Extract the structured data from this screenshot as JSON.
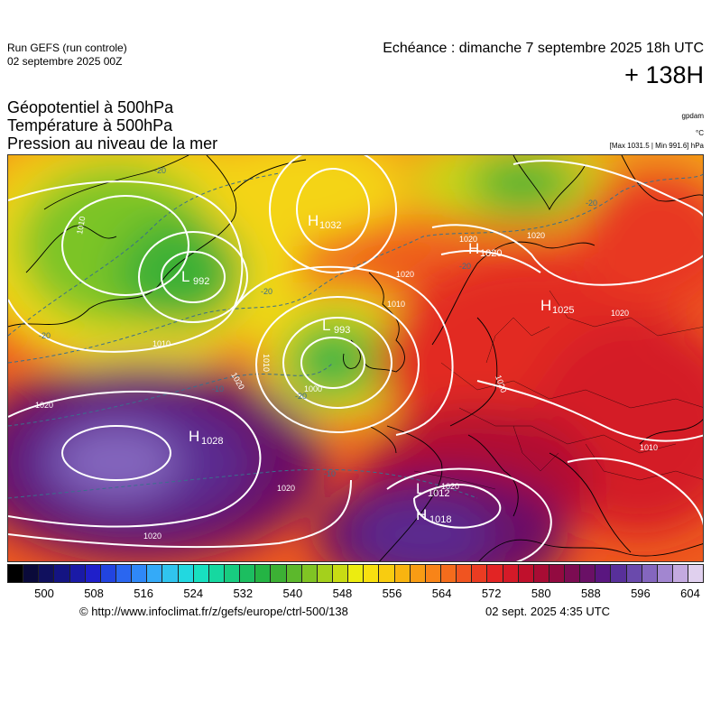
{
  "header": {
    "run_line1": "Run GEFS (run controle)",
    "run_line2": "02 septembre 2025 00Z",
    "echeance": "Echéance : dimanche 7 septembre 2025 18h UTC",
    "forecast_hour": "+ 138H"
  },
  "titles": {
    "line1": "Géopotentiel à 500hPa",
    "line2": "Température à 500hPa",
    "line3": "Pression au niveau de la mer"
  },
  "units": {
    "geopotential": "gpdam",
    "temperature": "°C",
    "pressure_range": "[Max 1031.5 | Min 991.6] hPa"
  },
  "pressure_centers": [
    {
      "type": "H",
      "value": "1032"
    },
    {
      "type": "H",
      "value": "1020"
    },
    {
      "type": "L",
      "value": "992"
    },
    {
      "type": "L",
      "value": "993"
    },
    {
      "type": "H",
      "value": "1025"
    },
    {
      "type": "H",
      "value": "1028"
    },
    {
      "type": "L",
      "value": "1012"
    },
    {
      "type": "H",
      "value": "1018"
    }
  ],
  "isobar_labels": [
    "1010",
    "1010",
    "1020",
    "1020",
    "1020",
    "1020",
    "1020",
    "1010",
    "1000",
    "1010",
    "1020",
    "1020",
    "1020",
    "1020",
    "1010",
    "1020"
  ],
  "isotherm_labels": [
    "-20",
    "-20",
    "-20",
    "-20",
    "-20",
    "-20",
    "-10",
    "-10"
  ],
  "colorbar": {
    "ticks": [
      "500",
      "508",
      "516",
      "524",
      "532",
      "540",
      "548",
      "556",
      "564",
      "572",
      "580",
      "588",
      "596",
      "604"
    ],
    "colors": [
      "#000000",
      "#0a0a3a",
      "#10105e",
      "#141482",
      "#1a1aa6",
      "#1f1fca",
      "#2244e0",
      "#2a66f0",
      "#2f88f8",
      "#34aaf8",
      "#30c4ee",
      "#22d8e0",
      "#18e0c0",
      "#16d8a0",
      "#18cc80",
      "#1cbe60",
      "#24b444",
      "#3cb034",
      "#5cb82c",
      "#80c424",
      "#a4d01c",
      "#c8dc14",
      "#ecec10",
      "#f8e010",
      "#f8cc10",
      "#f8b410",
      "#f89c14",
      "#f88418",
      "#f46c1c",
      "#f05420",
      "#ea3c22",
      "#e22424",
      "#d41a28",
      "#c0102c",
      "#a80c34",
      "#920a40",
      "#7c0c52",
      "#6a1066",
      "#5a1680",
      "#58309a",
      "#6a4aac",
      "#8466be",
      "#a286d0",
      "#c4aae0",
      "#e0d0ee"
    ]
  },
  "footer": {
    "url": "© http://www.infoclimat.fr/z/gefs/europe/ctrl-500/138",
    "generated": "02 sept. 2025  4:35 UTC"
  }
}
